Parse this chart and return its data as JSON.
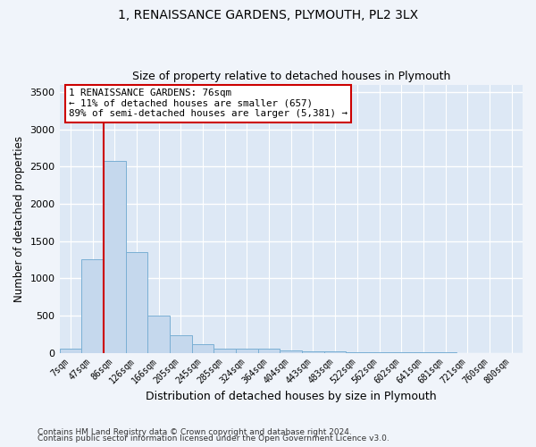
{
  "title1": "1, RENAISSANCE GARDENS, PLYMOUTH, PL2 3LX",
  "title2": "Size of property relative to detached houses in Plymouth",
  "xlabel": "Distribution of detached houses by size in Plymouth",
  "ylabel": "Number of detached properties",
  "footer1": "Contains HM Land Registry data © Crown copyright and database right 2024.",
  "footer2": "Contains public sector information licensed under the Open Government Licence v3.0.",
  "annotation_line1": "1 RENAISSANCE GARDENS: 76sqm",
  "annotation_line2": "← 11% of detached houses are smaller (657)",
  "annotation_line3": "89% of semi-detached houses are larger (5,381) →",
  "bar_color": "#c5d8ed",
  "bar_edge_color": "#7aafd4",
  "fig_background_color": "#f0f4fa",
  "axes_background_color": "#dde8f5",
  "grid_color": "#ffffff",
  "red_line_color": "#cc0000",
  "annotation_box_color": "#cc0000",
  "bin_labels": [
    "7sqm",
    "47sqm",
    "86sqm",
    "126sqm",
    "166sqm",
    "205sqm",
    "245sqm",
    "285sqm",
    "324sqm",
    "364sqm",
    "404sqm",
    "443sqm",
    "483sqm",
    "522sqm",
    "562sqm",
    "602sqm",
    "641sqm",
    "681sqm",
    "721sqm",
    "760sqm",
    "800sqm"
  ],
  "bar_heights": [
    52,
    1250,
    2580,
    1350,
    500,
    230,
    115,
    55,
    50,
    50,
    35,
    25,
    20,
    10,
    5,
    4,
    3,
    2,
    1,
    1,
    1
  ],
  "red_line_x": 1.5,
  "ylim": [
    0,
    3600
  ],
  "yticks": [
    0,
    500,
    1000,
    1500,
    2000,
    2500,
    3000,
    3500
  ]
}
